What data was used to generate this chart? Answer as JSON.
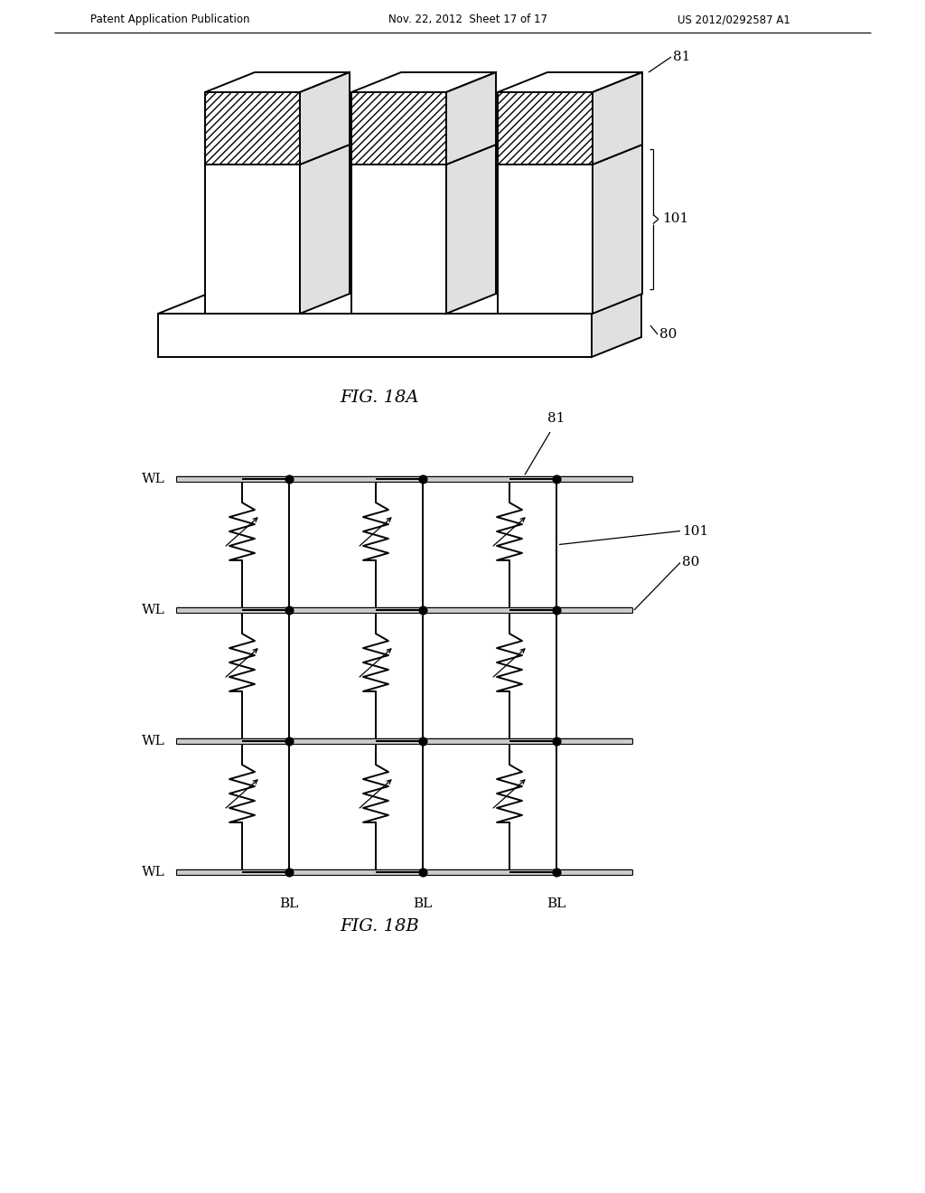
{
  "header_left": "Patent Application Publication",
  "header_mid": "Nov. 22, 2012  Sheet 17 of 17",
  "header_right": "US 2012/0292587 A1",
  "fig18a_caption": "FIG. 18A",
  "fig18b_caption": "FIG. 18B",
  "label_81": "81",
  "label_101": "101",
  "label_80": "80",
  "label_WL": "WL",
  "label_BL": "BL",
  "bg_color": "#ffffff",
  "line_color": "#000000"
}
